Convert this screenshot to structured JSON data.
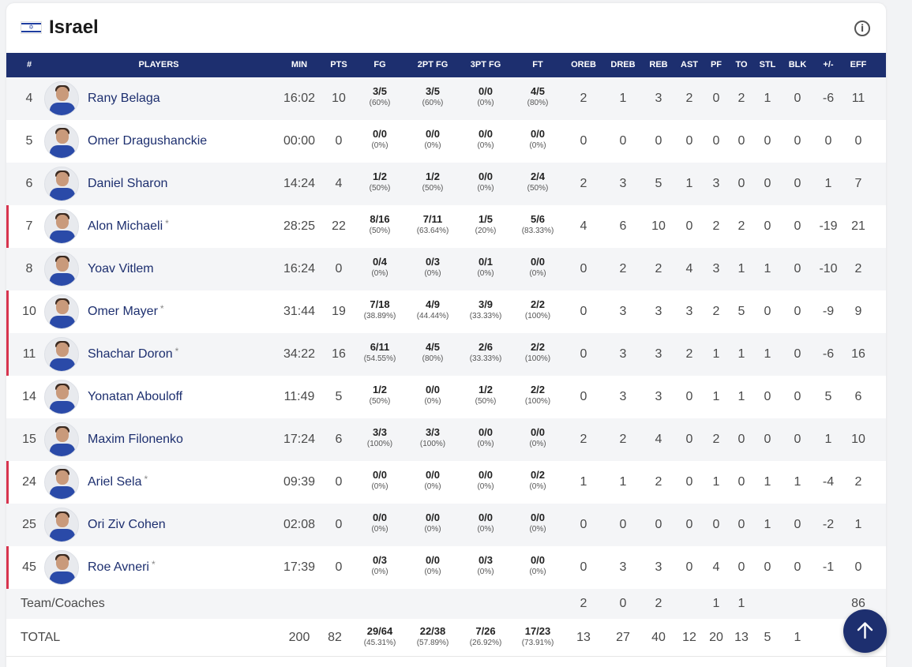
{
  "team": {
    "name": "Israel",
    "flag_icon": "israel-flag-icon",
    "info_icon": "info-icon"
  },
  "columns": [
    "#",
    "PLAYERS",
    "MIN",
    "PTS",
    "FG",
    "2PT FG",
    "3PT FG",
    "FT",
    "OREB",
    "DREB",
    "REB",
    "AST",
    "PF",
    "TO",
    "STL",
    "BLK",
    "+/-",
    "EFF"
  ],
  "players": [
    {
      "num": "4",
      "name": "Rany Belaga",
      "starter": false,
      "min": "16:02",
      "pts": "10",
      "fg": "3/5",
      "fg_pct": "(60%)",
      "fg2": "3/5",
      "fg2_pct": "(60%)",
      "fg3": "0/0",
      "fg3_pct": "(0%)",
      "ft": "4/5",
      "ft_pct": "(80%)",
      "oreb": "2",
      "dreb": "1",
      "reb": "3",
      "ast": "2",
      "pf": "0",
      "to": "2",
      "stl": "1",
      "blk": "0",
      "pm": "-6",
      "eff": "11"
    },
    {
      "num": "5",
      "name": "Omer Dragushanckie",
      "starter": false,
      "min": "00:00",
      "pts": "0",
      "fg": "0/0",
      "fg_pct": "(0%)",
      "fg2": "0/0",
      "fg2_pct": "(0%)",
      "fg3": "0/0",
      "fg3_pct": "(0%)",
      "ft": "0/0",
      "ft_pct": "(0%)",
      "oreb": "0",
      "dreb": "0",
      "reb": "0",
      "ast": "0",
      "pf": "0",
      "to": "0",
      "stl": "0",
      "blk": "0",
      "pm": "0",
      "eff": "0"
    },
    {
      "num": "6",
      "name": "Daniel Sharon",
      "starter": false,
      "min": "14:24",
      "pts": "4",
      "fg": "1/2",
      "fg_pct": "(50%)",
      "fg2": "1/2",
      "fg2_pct": "(50%)",
      "fg3": "0/0",
      "fg3_pct": "(0%)",
      "ft": "2/4",
      "ft_pct": "(50%)",
      "oreb": "2",
      "dreb": "3",
      "reb": "5",
      "ast": "1",
      "pf": "3",
      "to": "0",
      "stl": "0",
      "blk": "0",
      "pm": "1",
      "eff": "7"
    },
    {
      "num": "7",
      "name": "Alon Michaeli",
      "starter": true,
      "min": "28:25",
      "pts": "22",
      "fg": "8/16",
      "fg_pct": "(50%)",
      "fg2": "7/11",
      "fg2_pct": "(63.64%)",
      "fg3": "1/5",
      "fg3_pct": "(20%)",
      "ft": "5/6",
      "ft_pct": "(83.33%)",
      "oreb": "4",
      "dreb": "6",
      "reb": "10",
      "ast": "0",
      "pf": "2",
      "to": "2",
      "stl": "0",
      "blk": "0",
      "pm": "-19",
      "eff": "21"
    },
    {
      "num": "8",
      "name": "Yoav Vitlem",
      "starter": false,
      "min": "16:24",
      "pts": "0",
      "fg": "0/4",
      "fg_pct": "(0%)",
      "fg2": "0/3",
      "fg2_pct": "(0%)",
      "fg3": "0/1",
      "fg3_pct": "(0%)",
      "ft": "0/0",
      "ft_pct": "(0%)",
      "oreb": "0",
      "dreb": "2",
      "reb": "2",
      "ast": "4",
      "pf": "3",
      "to": "1",
      "stl": "1",
      "blk": "0",
      "pm": "-10",
      "eff": "2"
    },
    {
      "num": "10",
      "name": "Omer Mayer",
      "starter": true,
      "min": "31:44",
      "pts": "19",
      "fg": "7/18",
      "fg_pct": "(38.89%)",
      "fg2": "4/9",
      "fg2_pct": "(44.44%)",
      "fg3": "3/9",
      "fg3_pct": "(33.33%)",
      "ft": "2/2",
      "ft_pct": "(100%)",
      "oreb": "0",
      "dreb": "3",
      "reb": "3",
      "ast": "3",
      "pf": "2",
      "to": "5",
      "stl": "0",
      "blk": "0",
      "pm": "-9",
      "eff": "9"
    },
    {
      "num": "11",
      "name": "Shachar Doron",
      "starter": true,
      "min": "34:22",
      "pts": "16",
      "fg": "6/11",
      "fg_pct": "(54.55%)",
      "fg2": "4/5",
      "fg2_pct": "(80%)",
      "fg3": "2/6",
      "fg3_pct": "(33.33%)",
      "ft": "2/2",
      "ft_pct": "(100%)",
      "oreb": "0",
      "dreb": "3",
      "reb": "3",
      "ast": "2",
      "pf": "1",
      "to": "1",
      "stl": "1",
      "blk": "0",
      "pm": "-6",
      "eff": "16"
    },
    {
      "num": "14",
      "name": "Yonatan Abouloff",
      "starter": false,
      "min": "11:49",
      "pts": "5",
      "fg": "1/2",
      "fg_pct": "(50%)",
      "fg2": "0/0",
      "fg2_pct": "(0%)",
      "fg3": "1/2",
      "fg3_pct": "(50%)",
      "ft": "2/2",
      "ft_pct": "(100%)",
      "oreb": "0",
      "dreb": "3",
      "reb": "3",
      "ast": "0",
      "pf": "1",
      "to": "1",
      "stl": "0",
      "blk": "0",
      "pm": "5",
      "eff": "6"
    },
    {
      "num": "15",
      "name": "Maxim Filonenko",
      "starter": false,
      "min": "17:24",
      "pts": "6",
      "fg": "3/3",
      "fg_pct": "(100%)",
      "fg2": "3/3",
      "fg2_pct": "(100%)",
      "fg3": "0/0",
      "fg3_pct": "(0%)",
      "ft": "0/0",
      "ft_pct": "(0%)",
      "oreb": "2",
      "dreb": "2",
      "reb": "4",
      "ast": "0",
      "pf": "2",
      "to": "0",
      "stl": "0",
      "blk": "0",
      "pm": "1",
      "eff": "10"
    },
    {
      "num": "24",
      "name": "Ariel Sela",
      "starter": true,
      "min": "09:39",
      "pts": "0",
      "fg": "0/0",
      "fg_pct": "(0%)",
      "fg2": "0/0",
      "fg2_pct": "(0%)",
      "fg3": "0/0",
      "fg3_pct": "(0%)",
      "ft": "0/2",
      "ft_pct": "(0%)",
      "oreb": "1",
      "dreb": "1",
      "reb": "2",
      "ast": "0",
      "pf": "1",
      "to": "0",
      "stl": "1",
      "blk": "1",
      "pm": "-4",
      "eff": "2"
    },
    {
      "num": "25",
      "name": "Ori Ziv Cohen",
      "starter": false,
      "min": "02:08",
      "pts": "0",
      "fg": "0/0",
      "fg_pct": "(0%)",
      "fg2": "0/0",
      "fg2_pct": "(0%)",
      "fg3": "0/0",
      "fg3_pct": "(0%)",
      "ft": "0/0",
      "ft_pct": "(0%)",
      "oreb": "0",
      "dreb": "0",
      "reb": "0",
      "ast": "0",
      "pf": "0",
      "to": "0",
      "stl": "1",
      "blk": "0",
      "pm": "-2",
      "eff": "1"
    },
    {
      "num": "45",
      "name": "Roe Avneri",
      "starter": true,
      "min": "17:39",
      "pts": "0",
      "fg": "0/3",
      "fg_pct": "(0%)",
      "fg2": "0/0",
      "fg2_pct": "(0%)",
      "fg3": "0/3",
      "fg3_pct": "(0%)",
      "ft": "0/0",
      "ft_pct": "(0%)",
      "oreb": "0",
      "dreb": "3",
      "reb": "3",
      "ast": "0",
      "pf": "4",
      "to": "0",
      "stl": "0",
      "blk": "0",
      "pm": "-1",
      "eff": "0"
    }
  ],
  "team_coaches": {
    "label": "Team/Coaches",
    "oreb": "2",
    "dreb": "0",
    "reb": "2",
    "pf": "1",
    "to": "1",
    "eff": "86"
  },
  "total": {
    "label": "TOTAL",
    "min": "200",
    "pts": "82",
    "fg": "29/64",
    "fg_pct": "(45.31%)",
    "fg2": "22/38",
    "fg2_pct": "(57.89%)",
    "fg3": "7/26",
    "fg3_pct": "(26.92%)",
    "ft": "17/23",
    "ft_pct": "(73.91%)",
    "oreb": "13",
    "dreb": "27",
    "reb": "40",
    "ast": "12",
    "pf": "20",
    "to": "13",
    "stl": "5",
    "blk": "1"
  },
  "starter_mark": "*",
  "starter_bar_color": "#d7344e",
  "header_color": "#1d2f6f",
  "scroll_top_icon": "arrow-up-icon"
}
